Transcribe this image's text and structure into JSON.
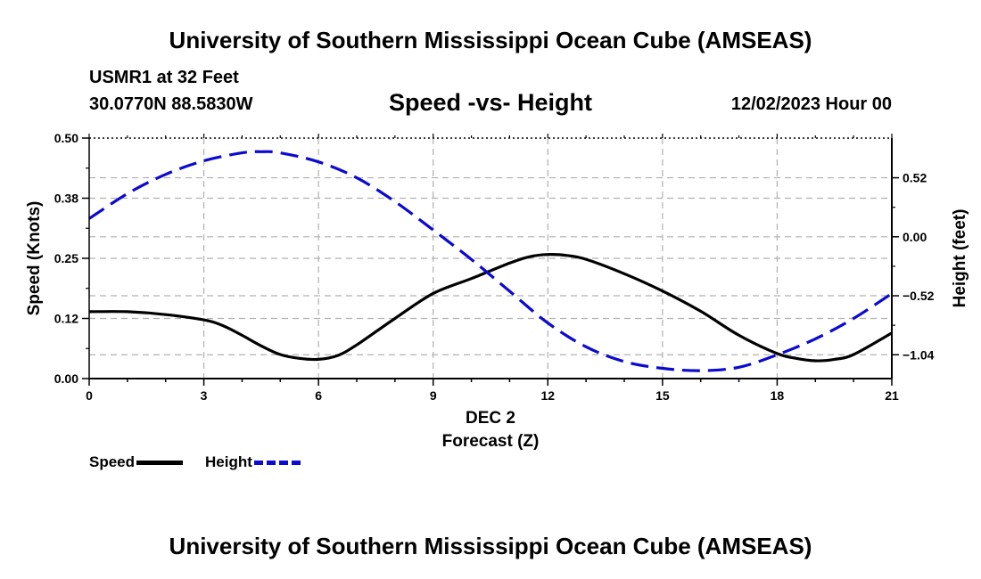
{
  "header": {
    "title": "University of Southern Mississippi Ocean Cube (AMSEAS)",
    "station": "USMR1 at 32 Feet",
    "coords": "30.0770N  88.5830W",
    "chart_title": "Speed -vs- Height",
    "date": "12/02/2023 Hour 00"
  },
  "footer": {
    "title": "University of Southern Mississippi Ocean Cube (AMSEAS)"
  },
  "legend": {
    "speed_label": "Speed",
    "height_label": "Height"
  },
  "colors": {
    "speed": "#000000",
    "height": "#0a0ad0",
    "grid": "#b0b0b0"
  },
  "chart_data": {
    "type": "line",
    "title": "Speed -vs- Height",
    "xlabel": "Forecast (Z)",
    "xsublabel": "DEC 2",
    "ylabel": "Speed (Knots)",
    "y2label": "Height (feet)",
    "xlim": [
      0,
      21
    ],
    "ylim": [
      0,
      0.5
    ],
    "y2lim": [
      -1.25,
      0.87
    ],
    "xticks": [
      0,
      3,
      6,
      9,
      12,
      15,
      18,
      21
    ],
    "xtick_labels": [
      "0",
      "3",
      "6",
      "9",
      "12",
      "15",
      "18",
      "21"
    ],
    "yticks": [
      0,
      0.125,
      0.25,
      0.375,
      0.5
    ],
    "ytick_labels": [
      "0.00",
      "0.12",
      "0.25",
      "0.38",
      "0.50"
    ],
    "y2ticks": [
      0.52,
      0,
      -0.52,
      -1.04
    ],
    "y2tick_labels": [
      "0.52",
      "0.00",
      "−0.52",
      "−1.04"
    ],
    "grid": true,
    "series": [
      {
        "name": "Speed",
        "axis": "left",
        "style": "solid",
        "x": [
          0,
          1,
          2,
          3,
          3.5,
          4,
          4.5,
          5,
          5.5,
          6,
          6.5,
          7,
          8,
          9,
          10,
          11,
          11.5,
          12,
          12.5,
          13,
          14,
          15,
          16,
          17,
          18,
          18.5,
          19,
          19.5,
          20,
          21
        ],
        "values": [
          0.139,
          0.139,
          0.133,
          0.122,
          0.11,
          0.09,
          0.068,
          0.05,
          0.042,
          0.04,
          0.048,
          0.07,
          0.125,
          0.177,
          0.208,
          0.24,
          0.253,
          0.258,
          0.256,
          0.248,
          0.218,
          0.182,
          0.14,
          0.09,
          0.052,
          0.042,
          0.037,
          0.04,
          0.05,
          0.095
        ]
      },
      {
        "name": "Height",
        "axis": "right",
        "style": "dashed",
        "x": [
          0,
          1,
          2,
          3,
          4,
          4.5,
          5,
          6,
          7,
          8,
          9,
          10,
          11,
          12,
          13,
          14,
          15,
          16,
          17,
          18,
          19,
          20,
          21
        ],
        "values": [
          0.16,
          0.38,
          0.55,
          0.67,
          0.74,
          0.75,
          0.74,
          0.66,
          0.52,
          0.31,
          0.06,
          -0.2,
          -0.48,
          -0.76,
          -0.97,
          -1.1,
          -1.16,
          -1.18,
          -1.15,
          -1.04,
          -0.9,
          -0.72,
          -0.5
        ]
      }
    ]
  }
}
